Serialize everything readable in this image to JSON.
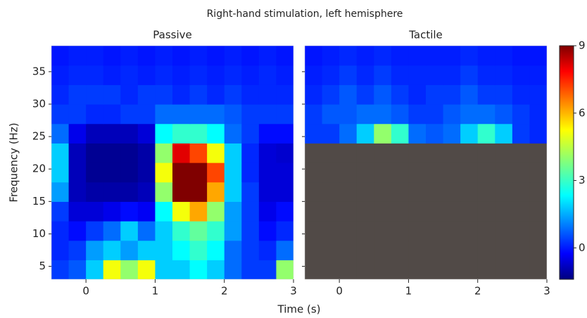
{
  "title": "Right-hand stimulation, left hemisphere",
  "xlabel": "Time (s)",
  "ylabel": "Frequency (Hz)",
  "colorbar": {
    "clim": [
      -1.4,
      9
    ],
    "ticks": [
      0,
      3,
      6,
      9
    ],
    "colormap": "jet"
  },
  "chart_data": [
    {
      "type": "heatmap",
      "title": "Passive",
      "x": [
        -0.375,
        -0.125,
        0.125,
        0.375,
        0.625,
        0.875,
        1.125,
        1.375,
        1.625,
        1.875,
        2.125,
        2.375,
        2.625,
        2.875
      ],
      "y": [
        4.5,
        7.5,
        10.5,
        13.5,
        16.5,
        19.5,
        22.5,
        25.5,
        28.5,
        31.5,
        34.5,
        37.5
      ],
      "values": [
        [
          0.5,
          0.8,
          2,
          5,
          4,
          5,
          2,
          2,
          2.5,
          2,
          1,
          0.5,
          0.5,
          4
        ],
        [
          0.3,
          0.5,
          1.5,
          2,
          1.5,
          2,
          2,
          2.5,
          3,
          2.5,
          1,
          0.5,
          0.3,
          1
        ],
        [
          0.3,
          0,
          0.5,
          1,
          2,
          1,
          2,
          3,
          3.5,
          3,
          1.5,
          0.5,
          0,
          0.3
        ],
        [
          0.5,
          -0.5,
          -0.5,
          -0.3,
          0,
          -0.2,
          2.5,
          5,
          6,
          4,
          1.5,
          0.5,
          -0.3,
          0
        ],
        [
          1.5,
          -0.8,
          -1,
          -1,
          -1,
          -0.8,
          4,
          9,
          9,
          6,
          2,
          0.5,
          -0.5,
          -0.5
        ],
        [
          2,
          -0.8,
          -1.2,
          -1.2,
          -1.2,
          -1,
          5,
          9,
          9,
          7,
          2,
          0.3,
          -0.5,
          -0.5
        ],
        [
          2,
          -0.8,
          -1.2,
          -1.2,
          -1.2,
          -1,
          4,
          8,
          7,
          5,
          2,
          0.3,
          -0.5,
          -0.6
        ],
        [
          1,
          -0.3,
          -0.8,
          -0.8,
          -0.8,
          -0.5,
          2.5,
          3,
          3,
          2.5,
          1,
          0.5,
          0,
          0
        ],
        [
          0.5,
          0.5,
          0.3,
          0.3,
          0.5,
          0.5,
          1,
          1,
          1,
          1,
          0.8,
          0.5,
          0.5,
          0.5
        ],
        [
          0.3,
          0.5,
          0.5,
          0.5,
          0.3,
          0.5,
          0.5,
          0.3,
          0.5,
          0.3,
          0.5,
          0.3,
          0.3,
          0.3
        ],
        [
          0.2,
          0.3,
          0.3,
          0.2,
          0.3,
          0.2,
          0.3,
          0.2,
          0.3,
          0.2,
          0.3,
          0.2,
          0.3,
          0.2
        ],
        [
          0.1,
          0.2,
          0.2,
          0.1,
          0.2,
          0.1,
          0.2,
          0.1,
          0.2,
          0.1,
          0.2,
          0.1,
          0.2,
          0.1
        ]
      ],
      "xlim": [
        -0.5,
        3
      ],
      "xticks": [
        0,
        1,
        2,
        3
      ],
      "ylim": [
        3,
        39
      ],
      "yticks": [
        5,
        10,
        15,
        20,
        25,
        30,
        35
      ]
    },
    {
      "type": "heatmap",
      "title": "Tactile",
      "null_color": "#514a47",
      "x": [
        -0.375,
        -0.125,
        0.125,
        0.375,
        0.625,
        0.875,
        1.125,
        1.375,
        1.625,
        1.875,
        2.125,
        2.375,
        2.625,
        2.875
      ],
      "y": [
        4.5,
        7.5,
        10.5,
        13.5,
        16.5,
        19.5,
        22.5,
        25.5,
        28.5,
        31.5,
        34.5,
        37.5
      ],
      "values": [
        [
          null,
          null,
          null,
          null,
          null,
          null,
          null,
          null,
          null,
          null,
          null,
          null,
          null,
          null
        ],
        [
          null,
          null,
          null,
          null,
          null,
          null,
          null,
          null,
          null,
          null,
          null,
          null,
          null,
          null
        ],
        [
          null,
          null,
          null,
          null,
          null,
          null,
          null,
          null,
          null,
          null,
          null,
          null,
          null,
          null
        ],
        [
          null,
          null,
          null,
          null,
          null,
          null,
          null,
          null,
          null,
          null,
          null,
          null,
          null,
          null
        ],
        [
          null,
          null,
          null,
          null,
          null,
          null,
          null,
          null,
          null,
          null,
          null,
          null,
          null,
          null
        ],
        [
          null,
          null,
          null,
          null,
          null,
          null,
          null,
          null,
          null,
          null,
          null,
          null,
          null,
          null
        ],
        [
          null,
          null,
          null,
          null,
          null,
          null,
          null,
          null,
          null,
          null,
          null,
          null,
          null,
          null
        ],
        [
          0.5,
          0.5,
          1,
          2,
          4,
          3,
          1,
          0.8,
          1,
          2,
          3,
          2,
          0.5,
          0.3
        ],
        [
          0.5,
          0.8,
          0.8,
          1,
          1,
          0.8,
          0.5,
          0.5,
          0.8,
          1,
          1,
          0.8,
          0.5,
          0.3
        ],
        [
          0.3,
          0.5,
          0.8,
          0.5,
          0.8,
          0.5,
          0.3,
          0.5,
          0.5,
          0.8,
          0.5,
          0.5,
          0.3,
          0.3
        ],
        [
          0.2,
          0.3,
          0.5,
          0.3,
          0.5,
          0.3,
          0.3,
          0.3,
          0.3,
          0.5,
          0.3,
          0.3,
          0.2,
          0.2
        ],
        [
          0.1,
          0.2,
          0.3,
          0.2,
          0.3,
          0.2,
          0.2,
          0.2,
          0.2,
          0.3,
          0.2,
          0.2,
          0.1,
          0.1
        ]
      ],
      "xlim": [
        -0.5,
        3
      ],
      "xticks": [
        0,
        1,
        2,
        3
      ],
      "ylim": [
        3,
        39
      ],
      "yticks": [
        5,
        10,
        15,
        20,
        25,
        30,
        35
      ]
    }
  ]
}
